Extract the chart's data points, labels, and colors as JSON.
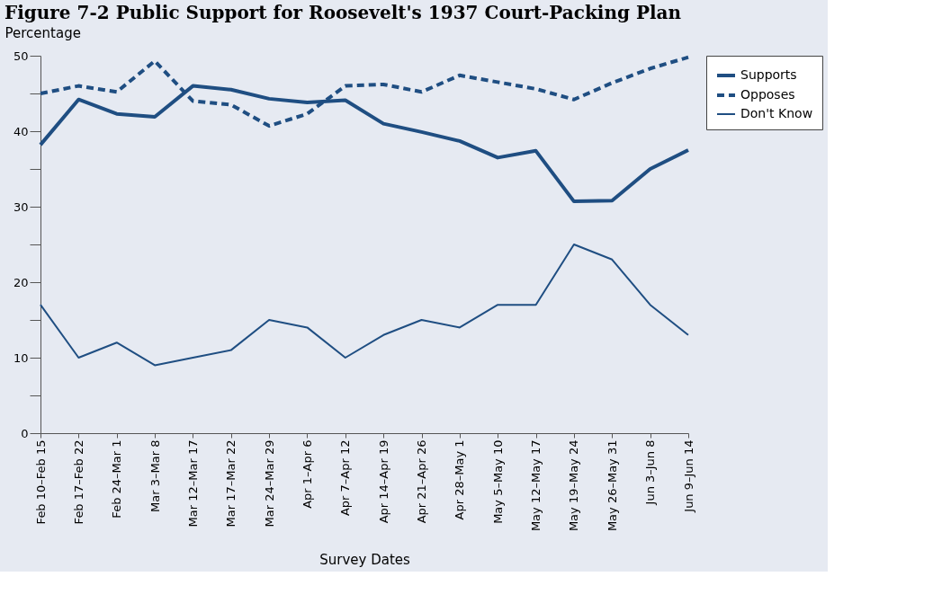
{
  "chart_data": {
    "type": "line",
    "title": "Figure 7-2 Public Support for Roosevelt's 1937 Court-Packing Plan",
    "ylabel": "Percentage",
    "xlabel": "Survey Dates",
    "categories": [
      "Feb 10–Feb 15",
      "Feb 17–Feb 22",
      "Feb 24–Mar 1",
      "Mar 3–Mar 8",
      "Mar 12–Mar 17",
      "Mar 17–Mar 22",
      "Mar 24–Mar 29",
      "Apr 1–Apr 6",
      "Apr 7–Apr 12",
      "Apr 14–Apr 19",
      "Apr 21–Apr 26",
      "Apr 28–May 1",
      "May 5–May 10",
      "May 12–May 17",
      "May 19–May 24",
      "May 26–May 31",
      "Jun 3–Jun 8",
      "Jun 9–Jun 14"
    ],
    "series": [
      {
        "name": "Supports",
        "color": "#1f4e82",
        "line_style": "solid",
        "values": [
          38.2,
          44.2,
          42.3,
          41.9,
          46,
          45.5,
          44.3,
          43.8,
          44.1,
          41,
          39.9,
          38.7,
          36.5,
          37.4,
          30.7,
          30.8,
          35,
          37.5
        ]
      },
      {
        "name": "Opposes",
        "color": "#1f4e82",
        "line_style": "dashed",
        "values": [
          45,
          46,
          45.2,
          49.3,
          44,
          43.5,
          40.7,
          42.3,
          46,
          46.2,
          45.2,
          47.4,
          46.5,
          45.6,
          44.2,
          46.4,
          48.3,
          49.8
        ]
      },
      {
        "name": "Don't Know",
        "color": "#1f4e82",
        "line_style": "solid",
        "values": [
          17,
          10,
          12,
          9,
          10,
          11,
          15,
          14,
          10,
          13,
          15,
          14,
          17,
          17,
          25,
          23,
          17,
          13
        ]
      }
    ],
    "ylim": [
      0,
      50
    ],
    "yticks": [
      0,
      {
        "value": 5,
        "label": null
      },
      10,
      {
        "value": 15,
        "label": null
      },
      20,
      {
        "value": 25,
        "label": null
      },
      30,
      {
        "value": 35,
        "label": null
      },
      40,
      {
        "value": 45,
        "label": null
      },
      50
    ],
    "grid": false,
    "legend": "right",
    "marker": "none"
  }
}
